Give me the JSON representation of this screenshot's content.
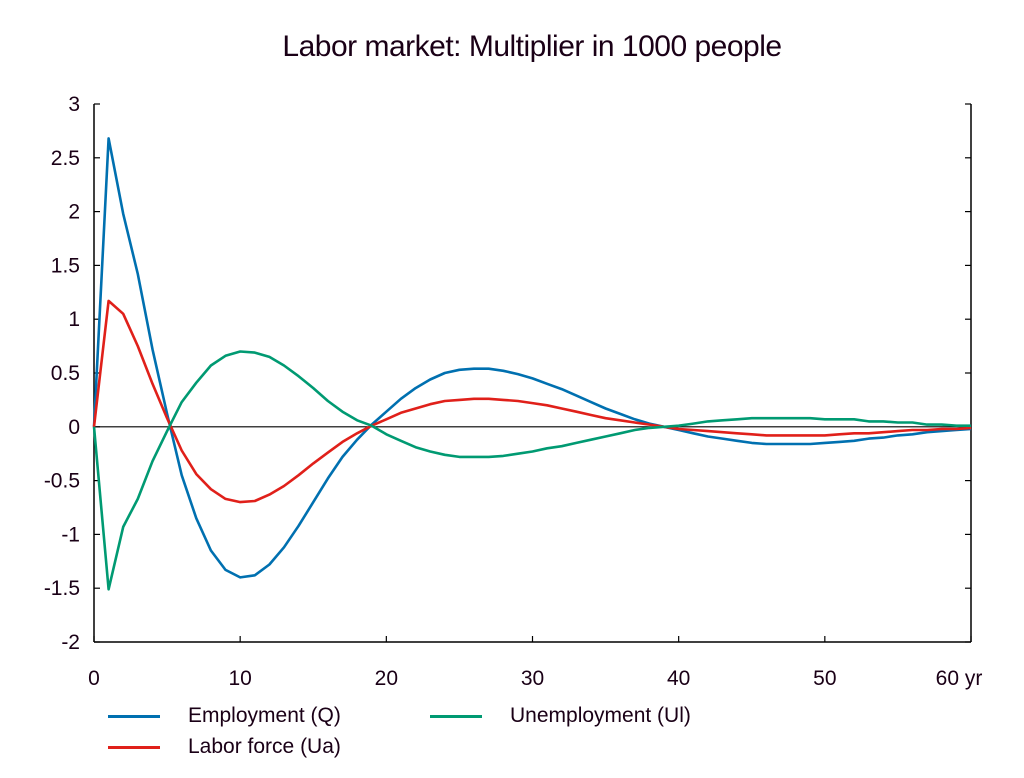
{
  "chart_data": {
    "type": "line",
    "title": "Labor market: Multiplier in 1000 people",
    "xlabel": "",
    "ylabel": "",
    "x_unit_suffix": "yr",
    "xlim": [
      0,
      60
    ],
    "ylim": [
      -2,
      3
    ],
    "x_ticks": [
      0,
      10,
      20,
      30,
      40,
      50,
      60
    ],
    "x_tick_labels": [
      "0",
      "10",
      "20",
      "30",
      "40",
      "50",
      "60 yr"
    ],
    "y_ticks": [
      -2,
      -1.5,
      -1,
      -0.5,
      0,
      0.5,
      1,
      1.5,
      2,
      2.5,
      3
    ],
    "y_tick_labels": [
      "-2",
      "-1.5",
      "-1",
      "-0.5",
      "0",
      "0.5",
      "1",
      "1.5",
      "2",
      "2.5",
      "3"
    ],
    "grid": false,
    "zero_line": true,
    "legend_position": "bottom",
    "x": [
      0,
      1,
      2,
      3,
      4,
      5,
      6,
      7,
      8,
      9,
      10,
      11,
      12,
      13,
      14,
      15,
      16,
      17,
      18,
      19,
      20,
      21,
      22,
      23,
      24,
      25,
      26,
      27,
      28,
      29,
      30,
      31,
      32,
      33,
      34,
      35,
      36,
      37,
      38,
      39,
      40,
      41,
      42,
      43,
      44,
      45,
      46,
      47,
      48,
      49,
      50,
      51,
      52,
      53,
      54,
      55,
      56,
      57,
      58,
      59,
      60
    ],
    "series": [
      {
        "name": "Employment (Q)",
        "color": "#0070b0",
        "values": [
          0,
          2.68,
          1.98,
          1.42,
          0.72,
          0.12,
          -0.45,
          -0.85,
          -1.15,
          -1.33,
          -1.4,
          -1.38,
          -1.28,
          -1.12,
          -0.92,
          -0.7,
          -0.48,
          -0.28,
          -0.12,
          0.02,
          0.14,
          0.26,
          0.36,
          0.44,
          0.5,
          0.53,
          0.54,
          0.54,
          0.52,
          0.49,
          0.45,
          0.4,
          0.35,
          0.29,
          0.23,
          0.17,
          0.12,
          0.07,
          0.03,
          0.0,
          -0.03,
          -0.06,
          -0.09,
          -0.11,
          -0.13,
          -0.15,
          -0.16,
          -0.16,
          -0.16,
          -0.16,
          -0.15,
          -0.14,
          -0.13,
          -0.11,
          -0.1,
          -0.08,
          -0.07,
          -0.05,
          -0.04,
          -0.03,
          -0.02
        ]
      },
      {
        "name": "Labor force (Ua)",
        "color": "#e0201a",
        "values": [
          0,
          1.17,
          1.05,
          0.75,
          0.4,
          0.08,
          -0.22,
          -0.44,
          -0.58,
          -0.67,
          -0.7,
          -0.69,
          -0.63,
          -0.55,
          -0.45,
          -0.34,
          -0.24,
          -0.14,
          -0.06,
          0.01,
          0.07,
          0.13,
          0.17,
          0.21,
          0.24,
          0.25,
          0.26,
          0.26,
          0.25,
          0.24,
          0.22,
          0.2,
          0.17,
          0.14,
          0.11,
          0.08,
          0.06,
          0.04,
          0.02,
          0.0,
          -0.02,
          -0.03,
          -0.04,
          -0.05,
          -0.06,
          -0.07,
          -0.08,
          -0.08,
          -0.08,
          -0.08,
          -0.08,
          -0.07,
          -0.06,
          -0.06,
          -0.05,
          -0.04,
          -0.03,
          -0.03,
          -0.02,
          -0.02,
          -0.01
        ]
      },
      {
        "name": "Unemployment (Ul)",
        "color": "#009a72",
        "values": [
          0,
          -1.51,
          -0.93,
          -0.67,
          -0.32,
          -0.04,
          0.23,
          0.41,
          0.57,
          0.66,
          0.7,
          0.69,
          0.65,
          0.57,
          0.47,
          0.36,
          0.24,
          0.14,
          0.06,
          0.01,
          -0.07,
          -0.13,
          -0.19,
          -0.23,
          -0.26,
          -0.28,
          -0.28,
          -0.28,
          -0.27,
          -0.25,
          -0.23,
          -0.2,
          -0.18,
          -0.15,
          -0.12,
          -0.09,
          -0.06,
          -0.03,
          -0.01,
          0.0,
          0.01,
          0.03,
          0.05,
          0.06,
          0.07,
          0.08,
          0.08,
          0.08,
          0.08,
          0.08,
          0.07,
          0.07,
          0.07,
          0.05,
          0.05,
          0.04,
          0.04,
          0.02,
          0.02,
          0.01,
          0.01
        ]
      }
    ]
  }
}
